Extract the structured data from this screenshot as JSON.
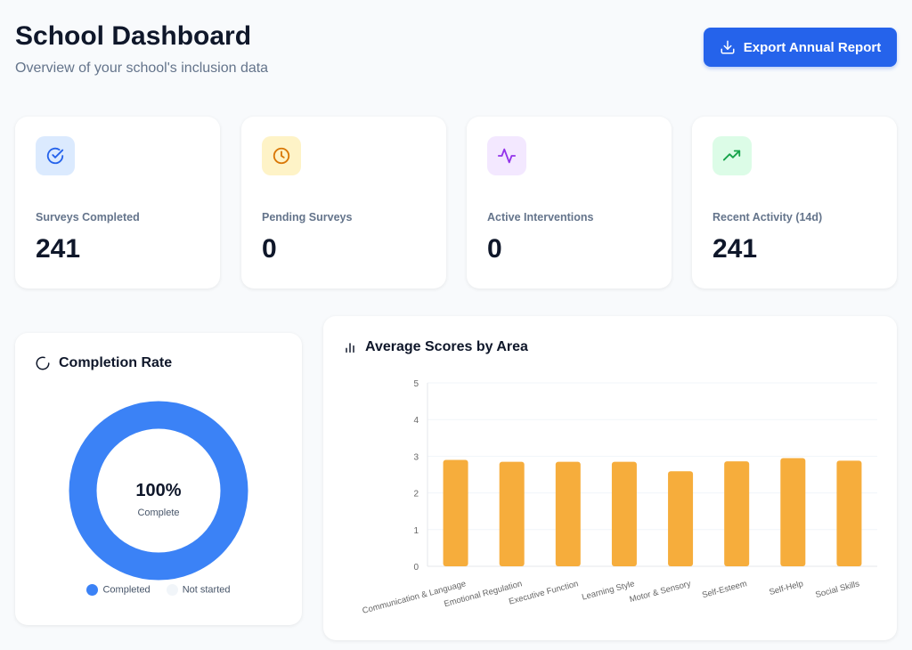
{
  "header": {
    "title": "School Dashboard",
    "subtitle": "Overview of your school's inclusion data",
    "export_label": "Export Annual Report",
    "export_icon": "download-icon"
  },
  "stats": [
    {
      "label": "Surveys Completed",
      "value": "241",
      "icon": "check-circle-icon",
      "color": "#2563eb",
      "bg": "#dbeafe"
    },
    {
      "label": "Pending Surveys",
      "value": "0",
      "icon": "clock-icon",
      "color": "#d97706",
      "bg": "#fef3c7"
    },
    {
      "label": "Active Interventions",
      "value": "0",
      "icon": "activity-icon",
      "color": "#9333ea",
      "bg": "#f3e8ff"
    },
    {
      "label": "Recent Activity (14d)",
      "value": "241",
      "icon": "trending-up-icon",
      "color": "#16a34a",
      "bg": "#dcfce7"
    }
  ],
  "completion": {
    "title": "Completion Rate",
    "percent_label": "100%",
    "caption": "Complete",
    "completed_fraction": 1.0,
    "legend": [
      {
        "label": "Completed",
        "color": "#3b82f6"
      },
      {
        "label": "Not started",
        "color": "#f1f5f9"
      }
    ]
  },
  "chart_data": {
    "type": "bar",
    "title": "Average Scores by Area",
    "categories": [
      "Communication & Language",
      "Emotional Regulation",
      "Executive Function",
      "Learning Style",
      "Motor & Sensory",
      "Self-Esteem",
      "Self-Help",
      "Social Skills"
    ],
    "values": [
      2.9,
      2.85,
      2.85,
      2.85,
      2.59,
      2.86,
      2.95,
      2.88
    ],
    "ylim": [
      0,
      5
    ],
    "yticks": [
      "0",
      "1",
      "2",
      "3",
      "4",
      "5"
    ],
    "grid": true,
    "color": "#f6ad3c"
  }
}
